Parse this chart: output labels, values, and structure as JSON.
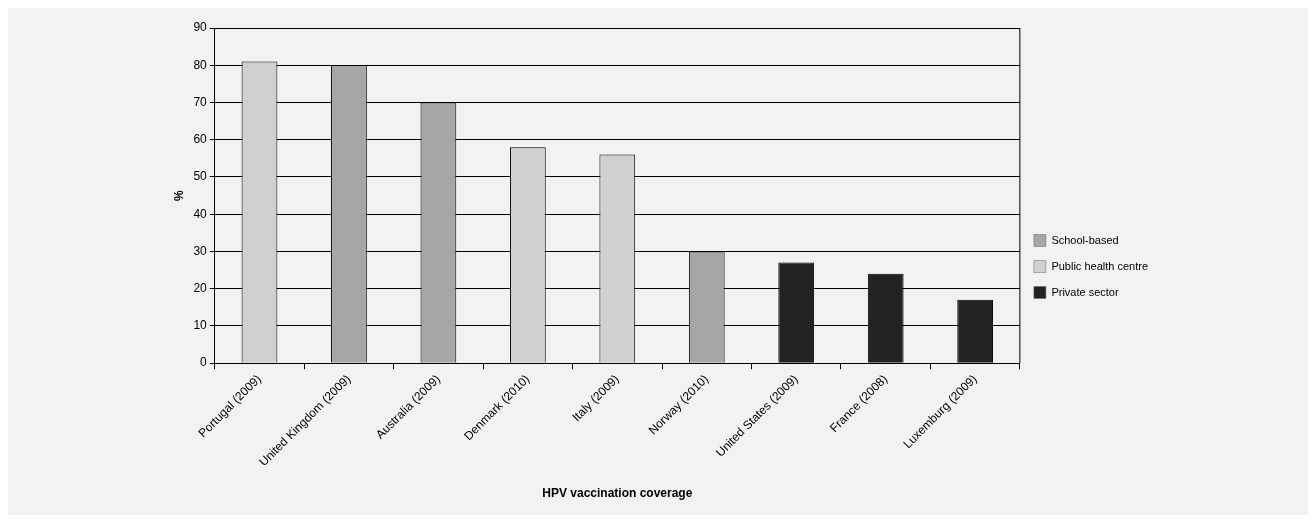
{
  "chart_data": {
    "type": "bar",
    "xlabel": "HPV vaccination coverage",
    "ylabel": "%",
    "categories": [
      "Portugal (2009)",
      "United Kingdom (2009)",
      "Australia (2009)",
      "Denmark (2010)",
      "Italy (2009)",
      "Norway (2010)",
      "United States (2009)",
      "France (2008)",
      "Luxemburg (2009)"
    ],
    "series": [
      {
        "name": "School-based",
        "color": "#a6a6a6",
        "values": [
          null,
          80,
          70,
          null,
          null,
          30,
          null,
          null,
          null
        ]
      },
      {
        "name": "Public health centre",
        "color": "#d0d0d0",
        "values": [
          81,
          null,
          null,
          58,
          56,
          null,
          null,
          null,
          null
        ]
      },
      {
        "name": "Private sector",
        "color": "#222222",
        "values": [
          null,
          null,
          null,
          null,
          null,
          null,
          27,
          24,
          17
        ]
      }
    ],
    "ylim": [
      0,
      90
    ],
    "yticks": [
      0,
      10,
      20,
      30,
      40,
      50,
      60,
      70,
      80,
      90
    ],
    "grid": "y",
    "legend": "right"
  }
}
